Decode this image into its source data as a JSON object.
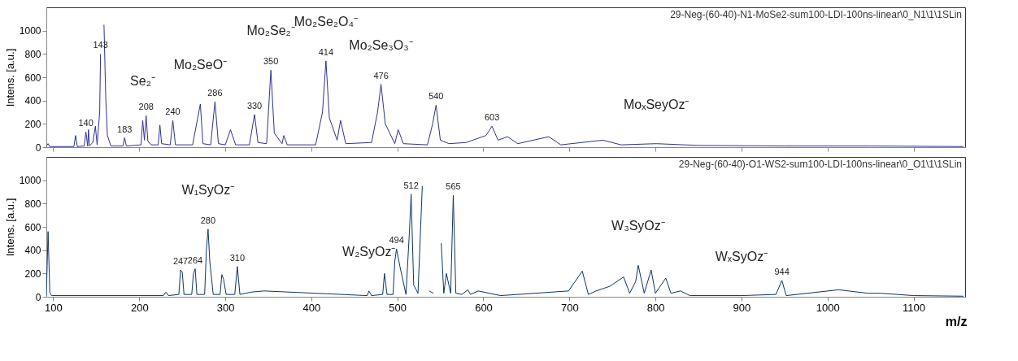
{
  "chart_data": [
    {
      "type": "line",
      "ylabel": "Intens. [a.u.]",
      "tick_labels": "y",
      "grid": false,
      "xlim": [
        92,
        1160
      ],
      "xticks": [
        100,
        200,
        300,
        400,
        500,
        600,
        700,
        800,
        900,
        1000,
        1100
      ],
      "ylim": [
        0,
        1200
      ],
      "yticks": [
        0,
        200,
        400,
        600,
        800,
        1000
      ],
      "x": [
        92,
        94,
        96,
        124,
        126,
        128,
        136,
        138,
        140,
        141,
        142,
        146,
        149,
        151,
        154,
        155,
        157,
        159,
        161,
        163,
        167,
        181,
        183,
        185,
        202,
        204,
        206,
        208,
        210,
        214,
        222,
        224,
        226,
        236,
        239,
        242,
        262,
        271,
        274,
        283,
        288,
        292,
        300,
        306,
        312,
        328,
        334,
        338,
        348,
        353,
        357,
        366,
        368,
        372,
        405,
        413,
        417,
        421,
        430,
        434,
        440,
        470,
        477,
        481,
        486,
        497,
        501,
        507,
        535,
        541,
        545,
        550,
        560,
        580,
        603,
        610,
        617,
        628,
        640,
        676,
        690,
        739,
        760,
        801,
        850,
        950,
        1050,
        1158
      ],
      "series": [
        {
          "color": "#2e3192",
          "values": [
            10,
            30,
            5,
            5,
            100,
            5,
            10,
            130,
            10,
            150,
            10,
            40,
            180,
            20,
            300,
            800,
            null,
            1050,
            430,
            100,
            10,
            10,
            80,
            10,
            20,
            230,
            60,
            270,
            50,
            20,
            20,
            190,
            30,
            20,
            230,
            20,
            20,
            370,
            30,
            20,
            390,
            30,
            20,
            150,
            20,
            20,
            280,
            40,
            30,
            660,
            120,
            30,
            100,
            20,
            20,
            300,
            740,
            250,
            60,
            230,
            30,
            40,
            300,
            540,
            200,
            30,
            150,
            30,
            20,
            200,
            360,
            60,
            30,
            40,
            100,
            180,
            60,
            90,
            30,
            90,
            20,
            60,
            20,
            30,
            15,
            10,
            10,
            5
          ]
        }
      ],
      "annotations": [
        "29-Neg-(60-40)-N1-MoSe2-sum100-LDI-100ns-linear\\0_N1\\1\\1SLin",
        {
          "text": "140",
          "x": 138,
          "y": 130
        },
        {
          "text": "143",
          "x": 155,
          "y": 800
        },
        {
          "text": "183",
          "x": 183,
          "y": 80
        },
        {
          "text": "208",
          "x": 208,
          "y": 270
        },
        {
          "text": "240",
          "x": 239,
          "y": 230
        },
        {
          "text": "286",
          "x": 288,
          "y": 390
        },
        {
          "text": "330",
          "x": 334,
          "y": 280
        },
        {
          "text": "350",
          "x": 353,
          "y": 660
        },
        {
          "text": "414",
          "x": 417,
          "y": 740
        },
        {
          "text": "476",
          "x": 481,
          "y": 540
        },
        {
          "text": "540",
          "x": 545,
          "y": 360
        },
        {
          "text": "603",
          "x": 610,
          "y": 180
        },
        {
          "text": "Se₂⁻",
          "x": 204,
          "y": 230
        },
        {
          "text": "Mo₂SeO⁻",
          "x": 271,
          "y": 370
        },
        {
          "text": "Mo₂Se₂⁻",
          "x": 353,
          "y": 660
        },
        {
          "text": "Mo₂Se₂O₄⁻",
          "x": 417,
          "y": 740
        },
        {
          "text": "Mo₂Se₃O₃⁻",
          "x": 481,
          "y": 540
        },
        {
          "text": "MoₓSeyOz⁻",
          "x": 801,
          "y": 30
        }
      ]
    },
    {
      "type": "line",
      "ylabel": "Intens. [a.u.]",
      "xlabel": "m/z",
      "grid": false,
      "xlim": [
        92,
        1160
      ],
      "xticks": [
        100,
        200,
        300,
        400,
        500,
        600,
        700,
        800,
        900,
        1000,
        1100
      ],
      "ylim": [
        0,
        1200
      ],
      "yticks": [
        0,
        200,
        400,
        600,
        800,
        1000
      ],
      "x": [
        92,
        94,
        96,
        98,
        228,
        231,
        234,
        246,
        248,
        250,
        252,
        261,
        263,
        265,
        267,
        276,
        278,
        280,
        282,
        286,
        294,
        296,
        298,
        301,
        311,
        314,
        317,
        330,
        345,
        465,
        467,
        470,
        483,
        485,
        488,
        495,
        497,
        499,
        503,
        510,
        514,
        516,
        519,
        524,
        529,
        533,
        537,
        542,
        548,
        551,
        554,
        557,
        562,
        565,
        568,
        575,
        582,
        585,
        594,
        620,
        699,
        715,
        722,
        731,
        747,
        763,
        770,
        777,
        780,
        787,
        795,
        800,
        812,
        818,
        829,
        840,
        900,
        940,
        947,
        952,
        1013,
        1047,
        1062,
        1100,
        1158
      ],
      "series": [
        {
          "color": "#0d3466",
          "values": [
            10,
            560,
            40,
            10,
            10,
            40,
            10,
            20,
            230,
            210,
            20,
            20,
            200,
            240,
            20,
            20,
            400,
            580,
            300,
            20,
            20,
            190,
            150,
            20,
            20,
            260,
            20,
            40,
            50,
            10,
            50,
            10,
            20,
            200,
            20,
            20,
            300,
            410,
            260,
            20,
            550,
            880,
            100,
            30,
            950,
            null,
            50,
            30,
            null,
            460,
            30,
            200,
            30,
            870,
            30,
            20,
            60,
            20,
            50,
            10,
            50,
            220,
            20,
            50,
            90,
            170,
            30,
            130,
            270,
            30,
            230,
            30,
            160,
            30,
            50,
            10,
            10,
            20,
            140,
            10,
            60,
            30,
            30,
            10,
            5
          ]
        }
      ],
      "annotations": [
        "29-Neg-(60-40)-O1-WS2-sum100-LDI-100ns-linear\\0_O1\\1\\1SLin",
        {
          "text": "247",
          "x": 248,
          "y": 230
        },
        {
          "text": "264",
          "x": 265,
          "y": 240
        },
        {
          "text": "280",
          "x": 280,
          "y": 580
        },
        {
          "text": "310",
          "x": 314,
          "y": 260
        },
        {
          "text": "494",
          "x": 499,
          "y": 410
        },
        {
          "text": "512",
          "x": 516,
          "y": 880
        },
        {
          "text": "565",
          "x": 565,
          "y": 870
        },
        {
          "text": "944",
          "x": 947,
          "y": 140
        },
        {
          "text": "W₁SyOz⁻",
          "x": 280,
          "y": 580
        },
        {
          "text": "W₂SyOz⁻",
          "x": 467,
          "y": 50
        },
        {
          "text": "WₓSyOz⁻",
          "x": 900,
          "y": 10
        },
        {
          "text": "W₃SyOz⁻",
          "x": 780,
          "y": 270
        }
      ]
    }
  ]
}
